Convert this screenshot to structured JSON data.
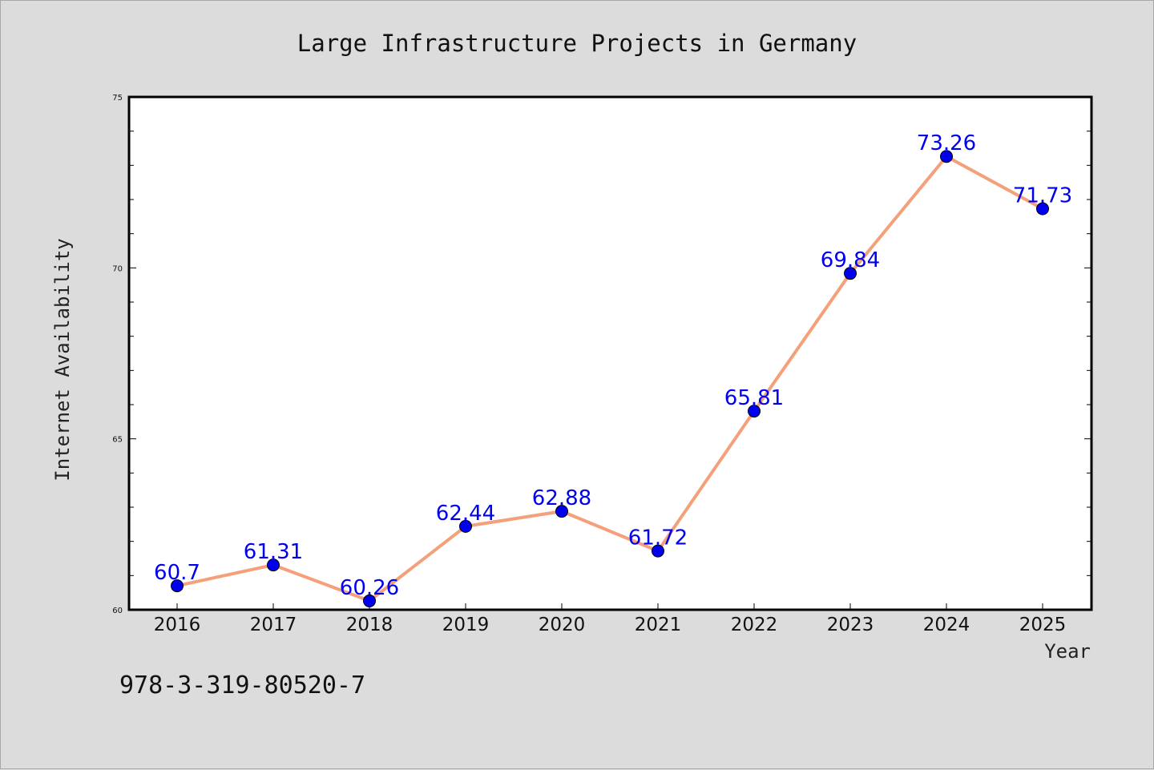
{
  "chart_data": {
    "type": "line",
    "title": "Large Infrastructure Projects in Germany",
    "xlabel": "Year",
    "ylabel": "Internet Availability",
    "categories": [
      "2016",
      "2017",
      "2018",
      "2019",
      "2020",
      "2021",
      "2022",
      "2023",
      "2024",
      "2025"
    ],
    "series": [
      {
        "values": [
          60.7,
          61.31,
          60.26,
          62.44,
          62.88,
          61.72,
          65.81,
          69.84,
          73.26,
          71.73
        ]
      }
    ],
    "data_labels": [
      "60.7",
      "61.31",
      "60.26",
      "62.44",
      "62.88",
      "61.72",
      "65.81",
      "69.84",
      "73.26",
      "71.73"
    ],
    "ylim": [
      60,
      75
    ],
    "yticks": [
      60,
      65,
      70,
      75
    ],
    "ytick_labels": [
      "60",
      "65",
      "70",
      "75"
    ],
    "grid": false,
    "colors": {
      "line": "#f4a07a",
      "marker": "#0000ee",
      "label": "#0000ee",
      "background": "#dcdcdc",
      "plot_background": "#ffffff"
    }
  },
  "footer": {
    "text": "978-3-319-80520-7"
  }
}
